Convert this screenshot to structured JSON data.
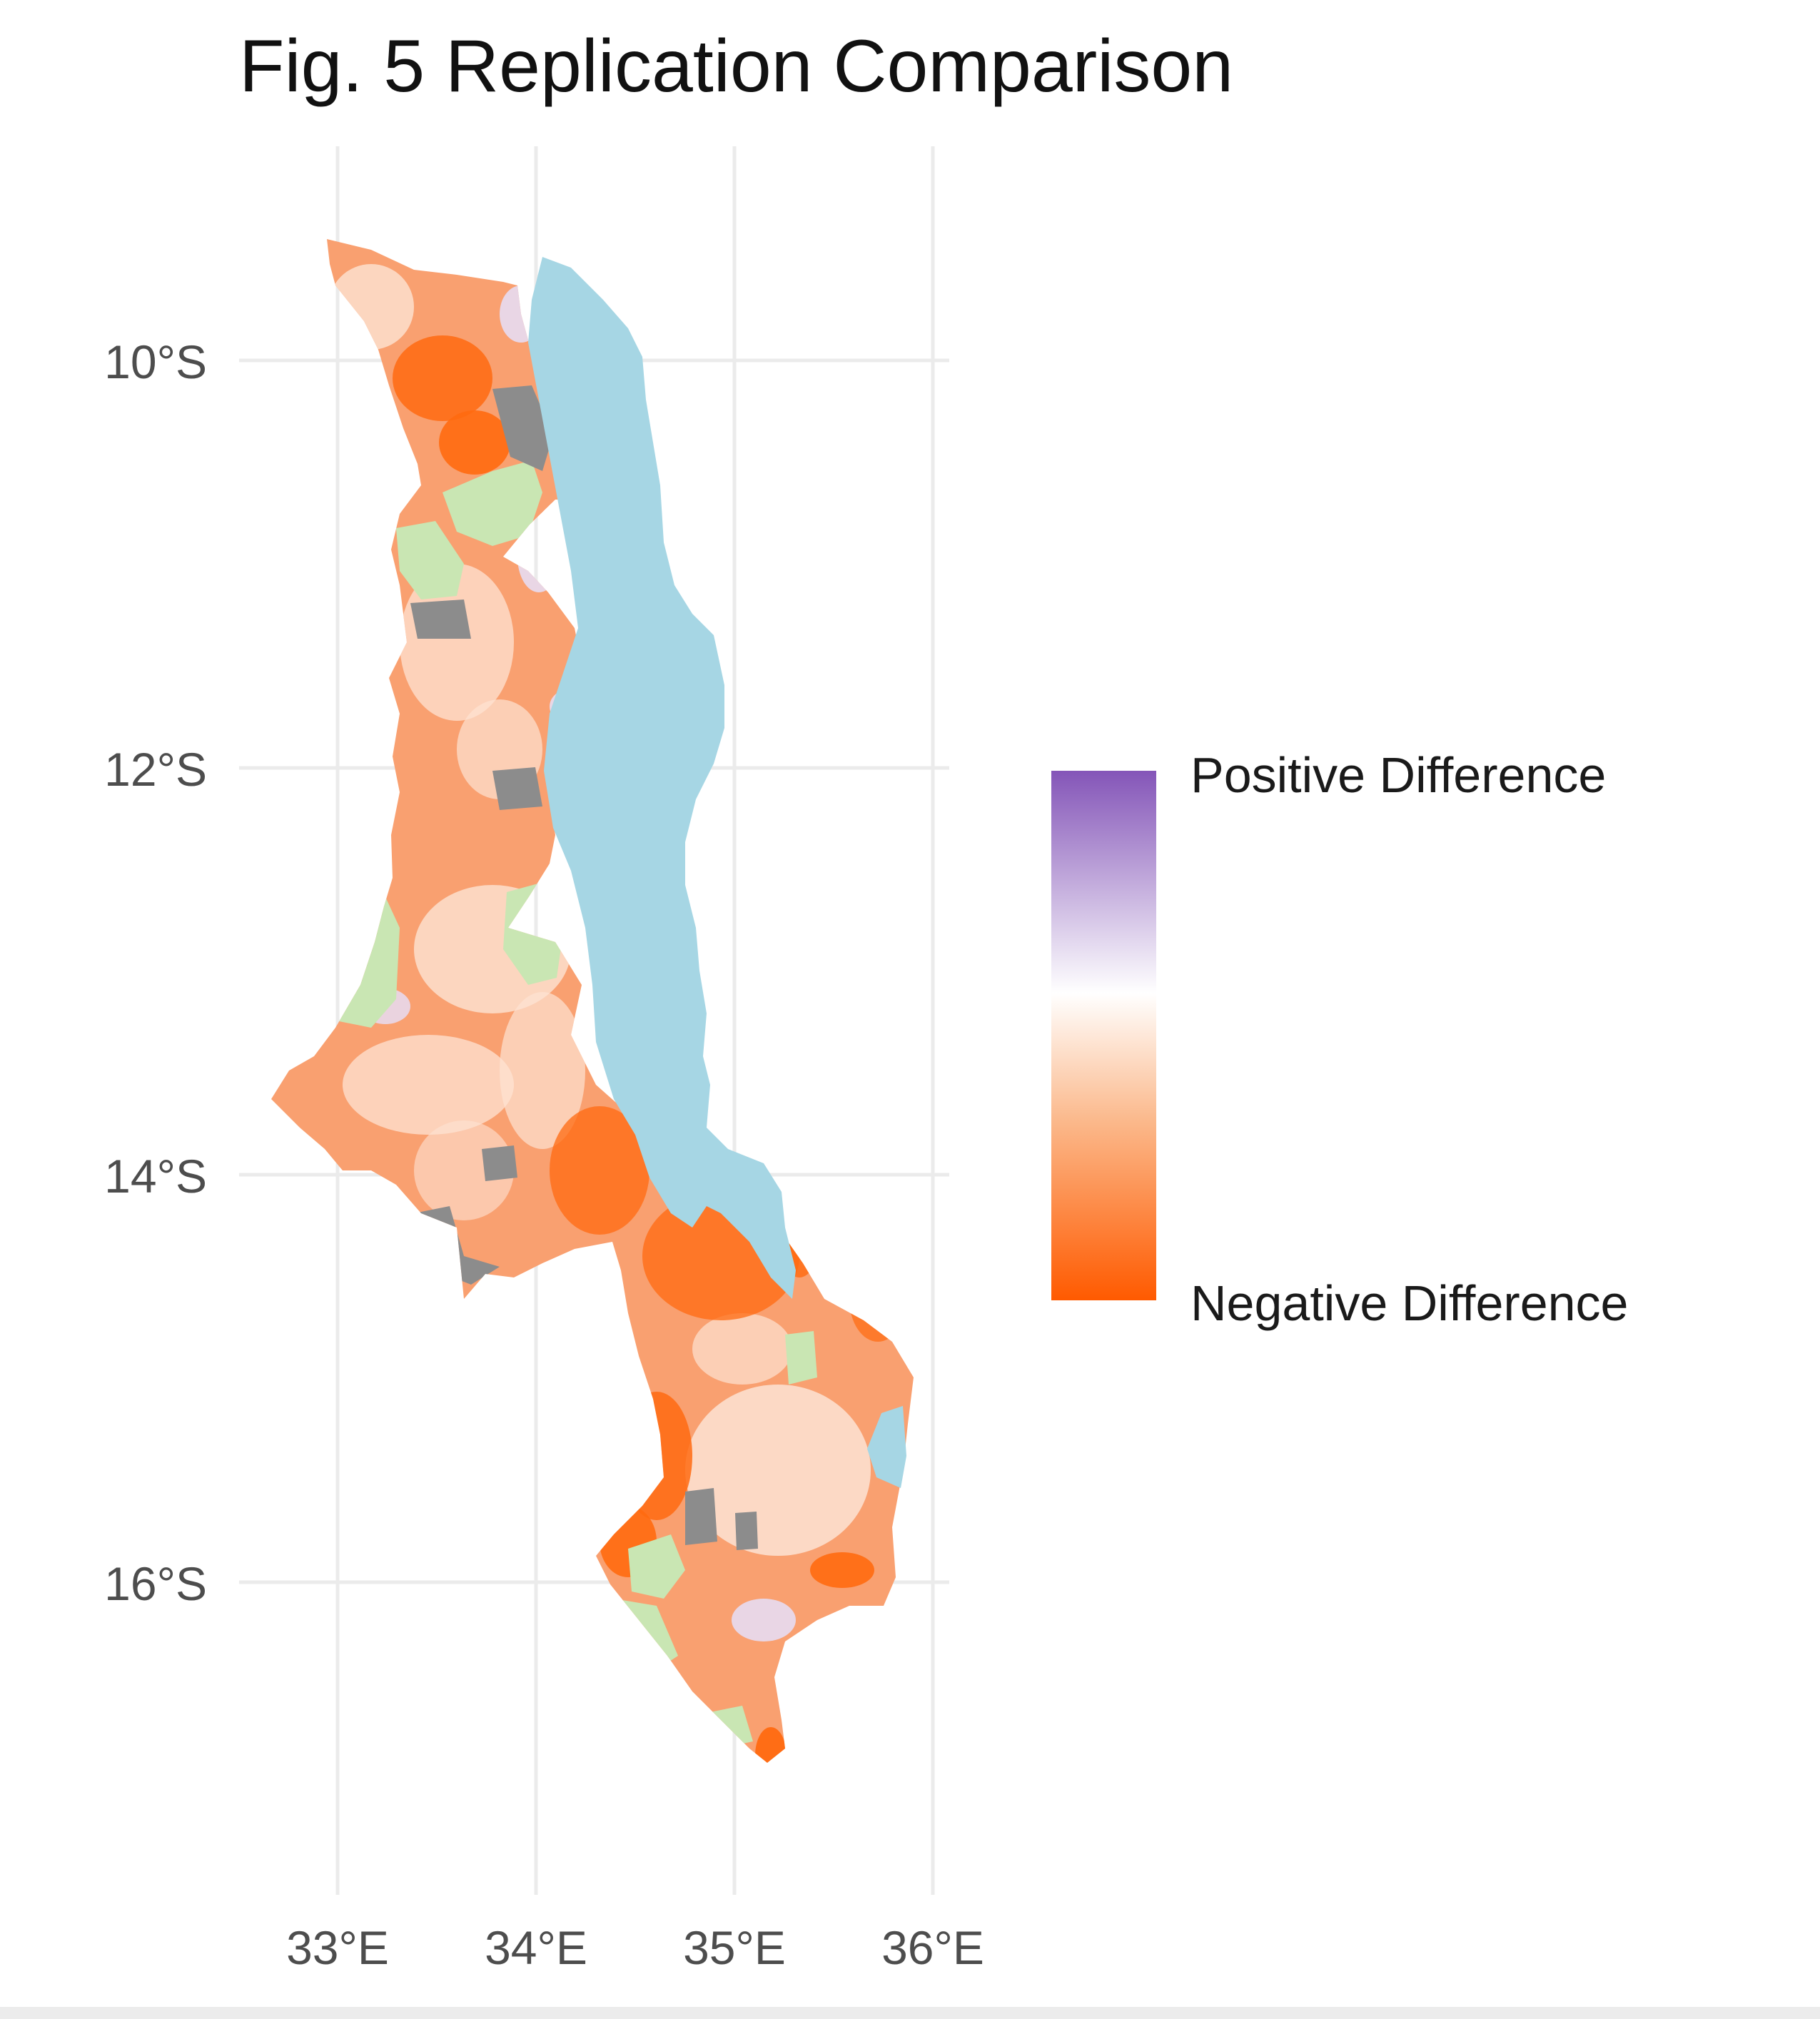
{
  "title": "Fig. 5 Replication Comparison",
  "axes": {
    "lat_ticks": [
      "10°S",
      "12°S",
      "14°S",
      "16°S"
    ],
    "lon_ticks": [
      "33°E",
      "34°E",
      "35°E",
      "36°E"
    ]
  },
  "legend": {
    "high_label": "Positive Difference",
    "low_label": "Negative Difference",
    "colors": {
      "positive": "#8455b8",
      "neutral": "#ffffff",
      "light_negative": "#fbb98c",
      "negative": "#ff5a00"
    },
    "placement": "right"
  },
  "map_colors": {
    "lake": "#a6d6e4",
    "protected_area": "#c9e6b3",
    "no_data": "#8c8c8c",
    "mid_orange": "#f9a070",
    "dark_orange": "#ff6a10",
    "pale": "#fde3d3",
    "lavender": "#e7dcf2"
  }
}
